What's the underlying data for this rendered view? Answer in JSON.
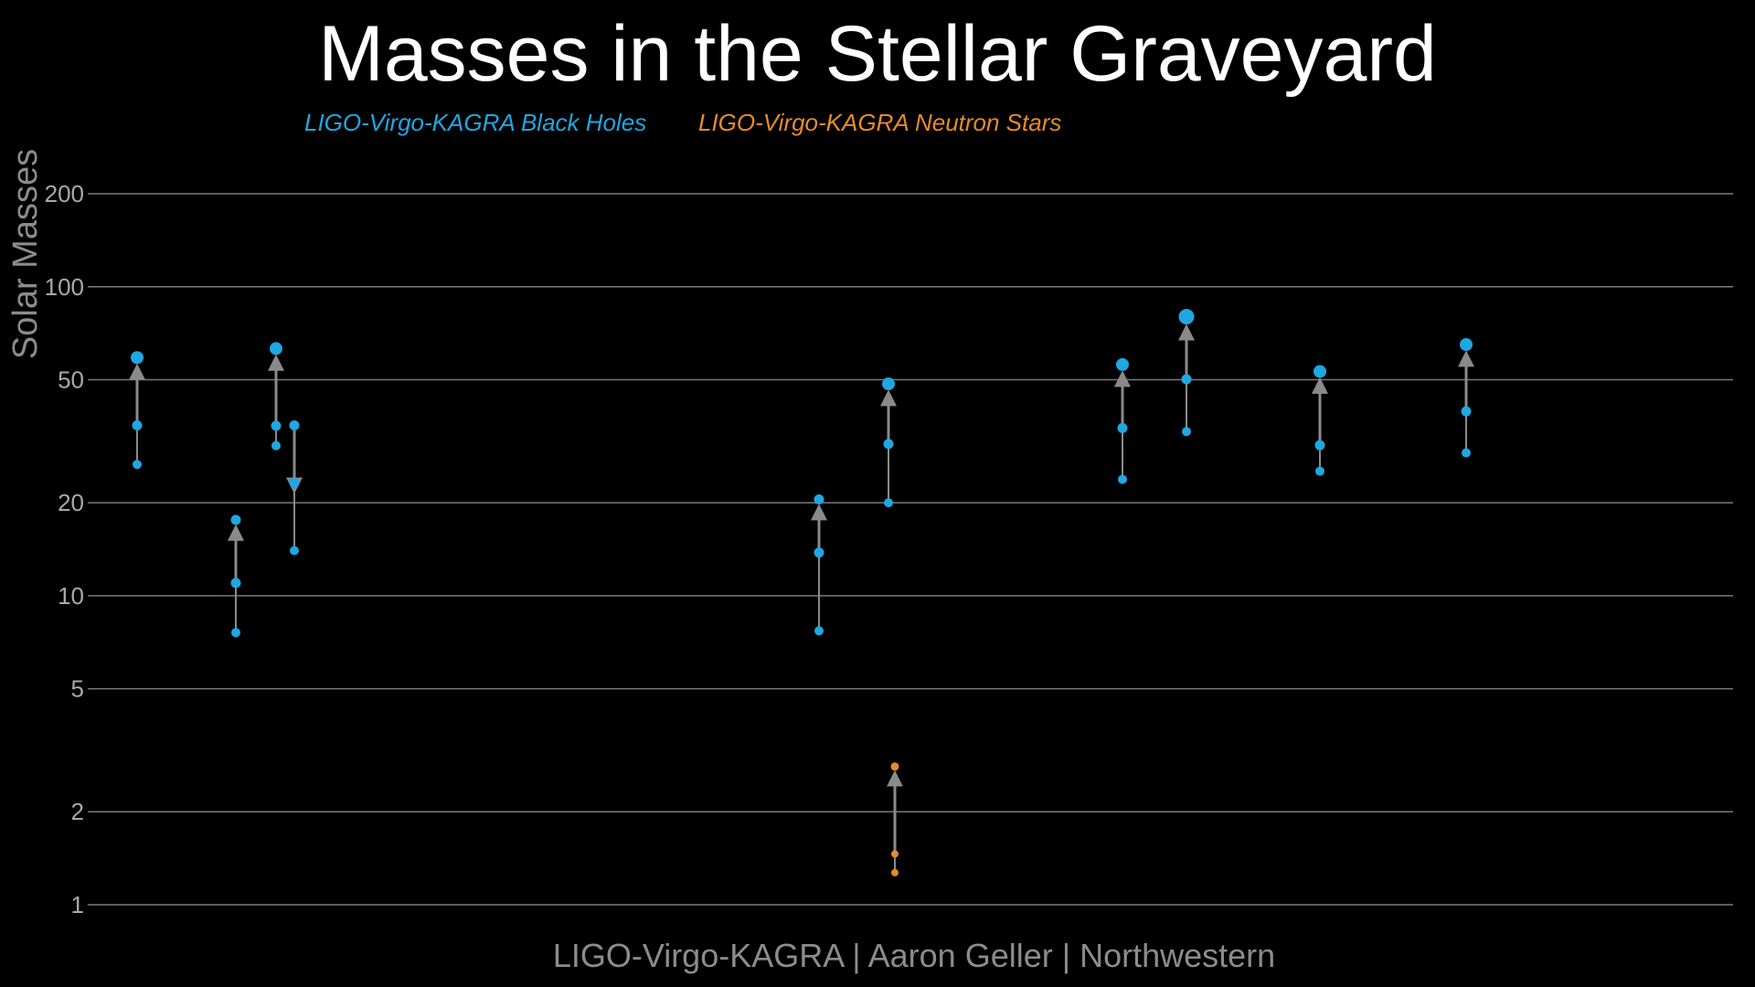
{
  "chart_data": {
    "type": "scatter",
    "title": "Masses in the Stellar Graveyard",
    "subtitle": "",
    "xlabel": "",
    "ylabel": "Solar Masses",
    "credit": "LIGO-Virgo-KAGRA | Aaron Geller | Northwestern",
    "y_scale": "log",
    "ylim": [
      1,
      200
    ],
    "y_ticks": [
      1,
      2,
      5,
      10,
      20,
      50,
      100,
      200
    ],
    "y_tick_labels": [
      "1",
      "2",
      "5",
      "10",
      "20",
      "50",
      "100",
      "200"
    ],
    "grid": true,
    "legend_position": "top-left",
    "legend": [
      {
        "name": "LIGO-Virgo-KAGRA Black Holes",
        "color": "#1ea7e1"
      },
      {
        "name": "LIGO-Virgo-KAGRA Neutron Stars",
        "color": "#e88a2a"
      }
    ],
    "arrow_color": "#8a8a8a",
    "mergers": [
      {
        "x": 1,
        "kind": "black-hole",
        "primary": 35.6,
        "secondary": 26.6,
        "remnant": 59.0
      },
      {
        "x": 2,
        "kind": "black-hole",
        "primary": 11.0,
        "secondary": 7.6,
        "remnant": 17.6
      },
      {
        "x": 3,
        "kind": "black-hole",
        "primary": 35.5,
        "secondary": 30.6,
        "remnant": 63.1
      },
      {
        "x": 4,
        "kind": "black-hole",
        "primary": 35.6,
        "secondary": 14.0,
        "remnant": 23.2,
        "note": ""
      },
      {
        "x": 5,
        "kind": "black-hole",
        "primary": 13.8,
        "secondary": 7.7,
        "remnant": 20.5
      },
      {
        "x": 6,
        "kind": "black-hole",
        "primary": 31.0,
        "secondary": 20.0,
        "remnant": 48.5
      },
      {
        "x": 7,
        "kind": "neutron-star",
        "primary": 1.46,
        "secondary": 1.27,
        "remnant": 2.8
      },
      {
        "x": 8,
        "kind": "black-hole",
        "primary": 34.9,
        "secondary": 23.8,
        "remnant": 56.0
      },
      {
        "x": 9,
        "kind": "black-hole",
        "primary": 50.2,
        "secondary": 34.0,
        "remnant": 80.0
      },
      {
        "x": 10,
        "kind": "black-hole",
        "primary": 30.7,
        "secondary": 25.3,
        "remnant": 53.2
      },
      {
        "x": 11,
        "kind": "black-hole",
        "primary": 39.5,
        "secondary": 29.0,
        "remnant": 65.0
      }
    ]
  }
}
